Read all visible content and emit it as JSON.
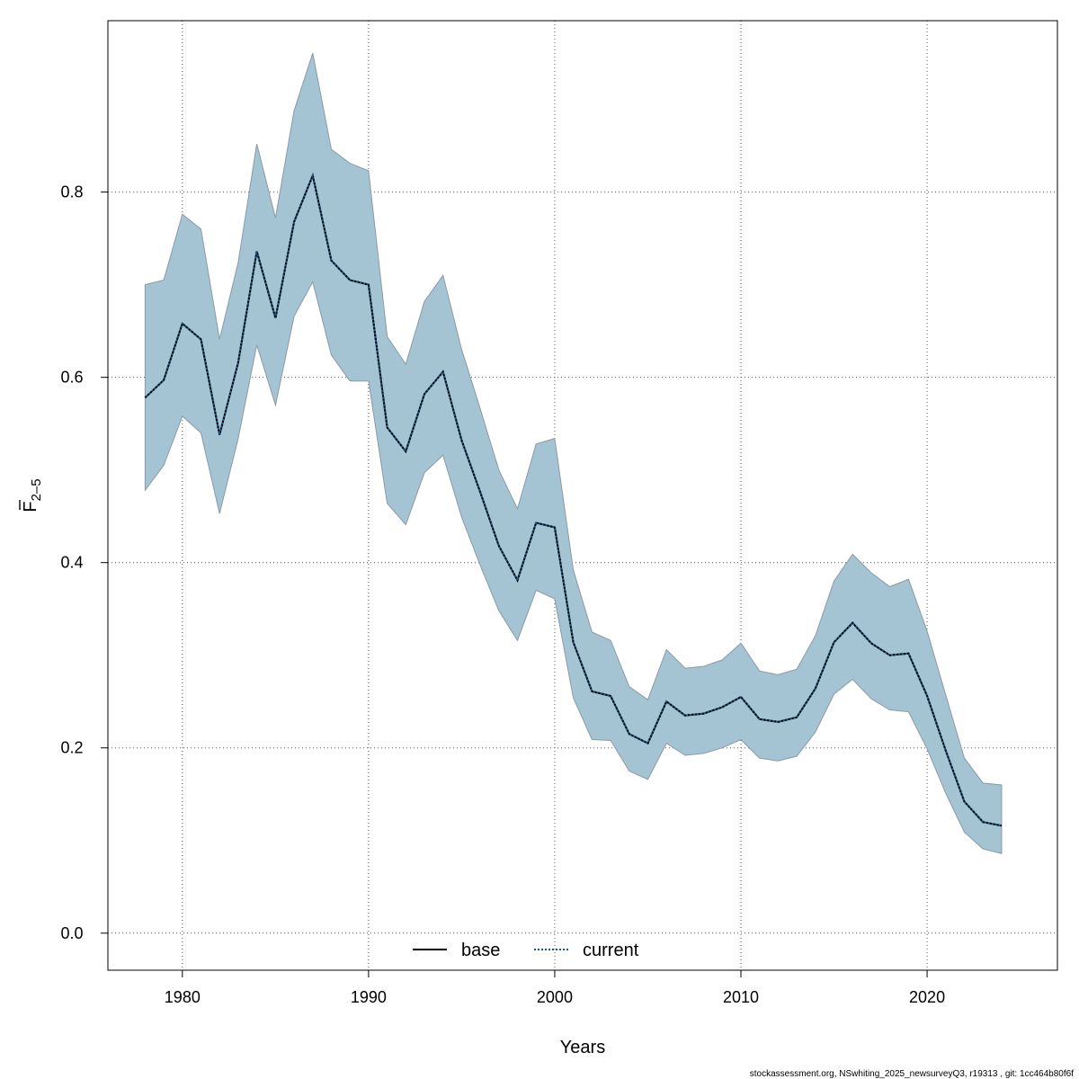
{
  "chart_data": {
    "type": "line",
    "title": "",
    "xlabel": "Years",
    "ylabel": "F",
    "ylabel_bar": "F",
    "ylabel_sub": "2–5",
    "xlim": [
      1976,
      2027
    ],
    "ylim": [
      -0.04,
      0.985
    ],
    "x_ticks": [
      1980,
      1990,
      2000,
      2010,
      2020
    ],
    "y_ticks": [
      0.0,
      0.2,
      0.4,
      0.6,
      0.8
    ],
    "y_tick_labels": [
      "0.0",
      "0.2",
      "0.4",
      "0.6",
      "0.8"
    ],
    "grid": true,
    "legend_position": "bottom-center",
    "colors": {
      "band": "#a4c4d4",
      "band_edge": "#8a9aa6",
      "current": "#1a5a8a",
      "base": "#000000"
    },
    "x": [
      1978,
      1979,
      1980,
      1981,
      1982,
      1983,
      1984,
      1985,
      1986,
      1987,
      1988,
      1989,
      1990,
      1991,
      1992,
      1993,
      1994,
      1995,
      1996,
      1997,
      1998,
      1999,
      2000,
      2001,
      2002,
      2003,
      2004,
      2005,
      2006,
      2007,
      2008,
      2009,
      2010,
      2011,
      2012,
      2013,
      2014,
      2015,
      2016,
      2017,
      2018,
      2019,
      2020,
      2021,
      2022,
      2023,
      2024
    ],
    "series": [
      {
        "name": "base",
        "style": "solid",
        "values": [
          0.578,
          0.597,
          0.658,
          0.641,
          0.538,
          0.616,
          0.736,
          0.664,
          0.768,
          0.818,
          0.726,
          0.705,
          0.7,
          0.546,
          0.52,
          0.582,
          0.606,
          0.532,
          0.476,
          0.418,
          0.381,
          0.443,
          0.438,
          0.314,
          0.261,
          0.256,
          0.215,
          0.205,
          0.25,
          0.235,
          0.237,
          0.244,
          0.255,
          0.231,
          0.228,
          0.233,
          0.264,
          0.314,
          0.335,
          0.313,
          0.3,
          0.302,
          0.256,
          0.197,
          0.142,
          0.12,
          0.116
        ]
      },
      {
        "name": "current",
        "style": "dotted",
        "values": [
          0.578,
          0.597,
          0.658,
          0.641,
          0.538,
          0.616,
          0.736,
          0.664,
          0.768,
          0.818,
          0.726,
          0.705,
          0.7,
          0.546,
          0.52,
          0.582,
          0.606,
          0.532,
          0.476,
          0.418,
          0.381,
          0.443,
          0.438,
          0.314,
          0.261,
          0.256,
          0.215,
          0.205,
          0.25,
          0.235,
          0.237,
          0.244,
          0.255,
          0.231,
          0.228,
          0.233,
          0.264,
          0.314,
          0.335,
          0.313,
          0.3,
          0.302,
          0.256,
          0.197,
          0.142,
          0.12,
          0.116
        ]
      }
    ],
    "band": {
      "upper": [
        0.7,
        0.705,
        0.776,
        0.76,
        0.641,
        0.724,
        0.852,
        0.772,
        0.888,
        0.95,
        0.846,
        0.831,
        0.823,
        0.644,
        0.614,
        0.682,
        0.71,
        0.63,
        0.566,
        0.5,
        0.458,
        0.528,
        0.534,
        0.392,
        0.325,
        0.316,
        0.266,
        0.252,
        0.306,
        0.286,
        0.288,
        0.295,
        0.313,
        0.283,
        0.279,
        0.285,
        0.321,
        0.38,
        0.409,
        0.389,
        0.374,
        0.382,
        0.326,
        0.257,
        0.189,
        0.162,
        0.16
      ],
      "lower": [
        0.478,
        0.505,
        0.558,
        0.54,
        0.453,
        0.534,
        0.635,
        0.57,
        0.666,
        0.703,
        0.624,
        0.596,
        0.596,
        0.464,
        0.441,
        0.497,
        0.516,
        0.449,
        0.397,
        0.348,
        0.316,
        0.37,
        0.361,
        0.254,
        0.209,
        0.208,
        0.175,
        0.166,
        0.205,
        0.192,
        0.194,
        0.2,
        0.209,
        0.189,
        0.186,
        0.191,
        0.217,
        0.258,
        0.274,
        0.253,
        0.241,
        0.239,
        0.199,
        0.151,
        0.109,
        0.091,
        0.086
      ]
    }
  },
  "footer": {
    "text": "stockassessment.org, NSwhiting_2025_newsurveyQ3, r19313 , git: 1cc464b80f6f"
  }
}
